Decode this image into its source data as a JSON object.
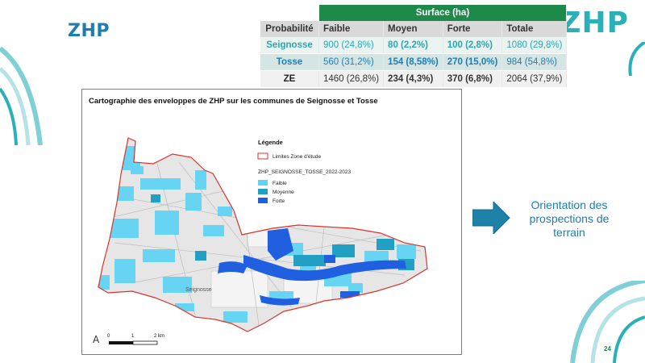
{
  "header": {
    "title_left": "ZHP",
    "title_right": "ZHP"
  },
  "table": {
    "group_header": "Surface (ha)",
    "columns": [
      "Probabilité",
      "Faible",
      "Moyen",
      "Forte",
      "Totale"
    ],
    "rows": [
      {
        "label": "Seignosse",
        "faible": "900 (24,8%)",
        "moyen": "80 (2,2%)",
        "forte": "100 (2,8%)",
        "totale": "1080 (29,8%)"
      },
      {
        "label": "Tosse",
        "faible": "560 (31,2%)",
        "moyen": "154 (8,58%)",
        "forte": "270 (15,0%)",
        "totale": "984 (54,8%)"
      },
      {
        "label": "ZE",
        "faible": "1460 (26,8%)",
        "moyen": "234 (4,3%)",
        "forte": "370 (6,8%)",
        "totale": "2064 (37,9%)"
      }
    ]
  },
  "map": {
    "title": "Cartographie des enveloppes de ZHP sur les communes de Seignosse et Tosse",
    "legend": {
      "title": "Légende",
      "limit_label": "Limites Zone d'étude",
      "layer_label": "ZHP_SEIGNOSSE_TOSSE_2022-2023",
      "items": [
        {
          "label": "Faible",
          "color": "#5fd3f3"
        },
        {
          "label": "Moyenne",
          "color": "#21a0c4"
        },
        {
          "label": "Forte",
          "color": "#1f5fe0"
        }
      ]
    },
    "place_label": "Seignosse",
    "scale": {
      "t0": "0",
      "t1": "1",
      "t2": "2 km"
    },
    "north": "A"
  },
  "side": {
    "line1": "Orientation des",
    "line2": "prospections de",
    "line3": "terrain"
  },
  "page_number": "24",
  "colors": {
    "accent_teal": "#2bb0b7",
    "accent_blue": "#1e7db0",
    "header_green": "#1e8a4a"
  }
}
